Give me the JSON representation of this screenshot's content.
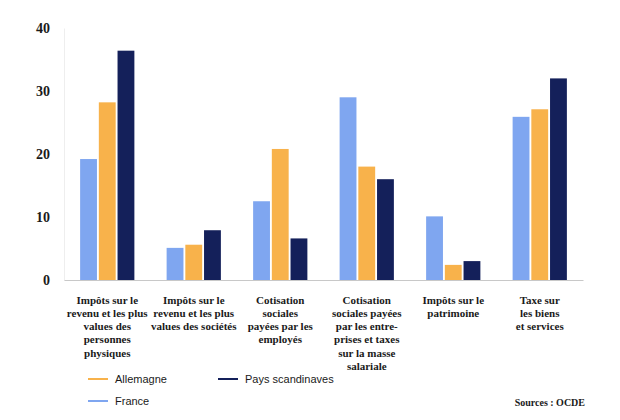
{
  "chart_data": {
    "type": "bar",
    "categories": [
      "Impôts sur le\nrevenu et les plus\nvalues des\npersonnes\nphysiques",
      "Impôts sur le\nrevenu et les plus\nvalues des sociétés",
      "Cotisation\nsociales\npayées par les\nemployés",
      "Cotisation\nsociales payées\npar les entre-\nprises et taxes\nsur la masse\nsalariale",
      "Impôts sur le\npatrimoine",
      "Taxe sur\nles biens\net services"
    ],
    "series": [
      {
        "name": "France",
        "color": "#7fa6f0",
        "values": [
          19.2,
          5.1,
          12.5,
          29.0,
          10.1,
          25.9
        ]
      },
      {
        "name": "Allemagne",
        "color": "#f8b24b",
        "values": [
          28.2,
          5.6,
          20.8,
          18.0,
          2.4,
          27.1
        ]
      },
      {
        "name": "Pays scandinaves",
        "color": "#14205a",
        "values": [
          36.4,
          7.9,
          6.6,
          16.0,
          3.0,
          32.0
        ]
      }
    ],
    "ylim": [
      0,
      40
    ],
    "yticks": [
      0,
      10,
      20,
      30,
      40
    ],
    "grid": false,
    "legend": "bottom left",
    "source": "Sources : OCDE"
  }
}
